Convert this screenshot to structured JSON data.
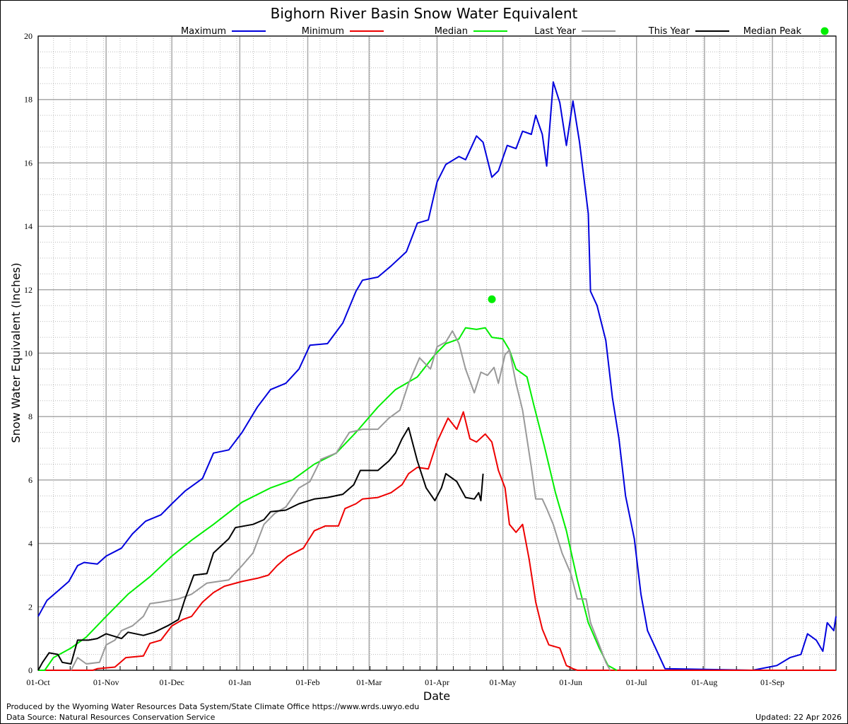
{
  "title": "Bighorn River Basin Snow Water Equivalent",
  "footer": {
    "produced_by": "Produced by the Wyoming Water Resources Data System/State Climate Office https://www.wrds.uwyo.edu",
    "data_source": "Data Source: Natural Resources Conservation Service",
    "updated": "Updated: 22 Apr 2026"
  },
  "chart_data": {
    "type": "line",
    "title": "Bighorn River Basin Snow Water Equivalent",
    "xlabel": "Date",
    "ylabel": "Snow Water Equivalent (Inches)",
    "ylim": [
      0,
      20
    ],
    "yticks": [
      0,
      2,
      4,
      6,
      8,
      10,
      12,
      14,
      16,
      18,
      20
    ],
    "xticks": [
      "01-Oct",
      "01-Nov",
      "01-Dec",
      "01-Jan",
      "01-Feb",
      "01-Mar",
      "01-Apr",
      "01-May",
      "01-Jun",
      "01-Jul",
      "01-Aug",
      "01-Sep"
    ],
    "xlim": [
      "01-Oct",
      "30-Sep"
    ],
    "grid": true,
    "legend_position": "top",
    "series": [
      {
        "name": "Maximum",
        "color": "#0000dd",
        "points": [
          [
            "01-Oct",
            1.7
          ],
          [
            "05-Oct",
            2.2
          ],
          [
            "10-Oct",
            2.5
          ],
          [
            "15-Oct",
            2.8
          ],
          [
            "19-Oct",
            3.3
          ],
          [
            "22-Oct",
            3.4
          ],
          [
            "28-Oct",
            3.35
          ],
          [
            "01-Nov",
            3.6
          ],
          [
            "08-Nov",
            3.85
          ],
          [
            "13-Nov",
            4.3
          ],
          [
            "19-Nov",
            4.7
          ],
          [
            "26-Nov",
            4.9
          ],
          [
            "01-Dec",
            5.25
          ],
          [
            "07-Dec",
            5.65
          ],
          [
            "15-Dec",
            6.05
          ],
          [
            "20-Dec",
            6.85
          ],
          [
            "27-Dec",
            6.95
          ],
          [
            "02-Jan",
            7.5
          ],
          [
            "09-Jan",
            8.3
          ],
          [
            "15-Jan",
            8.85
          ],
          [
            "22-Jan",
            9.05
          ],
          [
            "28-Jan",
            9.5
          ],
          [
            "02-Feb",
            10.25
          ],
          [
            "10-Feb",
            10.3
          ],
          [
            "17-Feb",
            10.95
          ],
          [
            "23-Feb",
            11.95
          ],
          [
            "26-Feb",
            12.3
          ],
          [
            "05-Mar",
            12.4
          ],
          [
            "11-Mar",
            12.75
          ],
          [
            "18-Mar",
            13.2
          ],
          [
            "23-Mar",
            14.1
          ],
          [
            "28-Mar",
            14.2
          ],
          [
            "01-Apr",
            15.4
          ],
          [
            "05-Apr",
            15.95
          ],
          [
            "11-Apr",
            16.2
          ],
          [
            "14-Apr",
            16.1
          ],
          [
            "19-Apr",
            16.85
          ],
          [
            "22-Apr",
            16.65
          ],
          [
            "26-Apr",
            15.55
          ],
          [
            "29-Apr",
            15.75
          ],
          [
            "03-May",
            16.55
          ],
          [
            "07-May",
            16.45
          ],
          [
            "10-May",
            17.0
          ],
          [
            "14-May",
            16.9
          ],
          [
            "16-May",
            17.5
          ],
          [
            "19-May",
            16.9
          ],
          [
            "21-May",
            15.9
          ],
          [
            "24-May",
            18.55
          ],
          [
            "27-May",
            17.9
          ],
          [
            "30-May",
            16.55
          ],
          [
            "02-Jun",
            17.95
          ],
          [
            "05-Jun",
            16.65
          ],
          [
            "09-Jun",
            14.4
          ],
          [
            "10-Jun",
            11.95
          ],
          [
            "13-Jun",
            11.5
          ],
          [
            "17-Jun",
            10.4
          ],
          [
            "20-Jun",
            8.6
          ],
          [
            "23-Jun",
            7.3
          ],
          [
            "26-Jun",
            5.5
          ],
          [
            "30-Jun",
            4.15
          ],
          [
            "03-Jul",
            2.4
          ],
          [
            "06-Jul",
            1.25
          ],
          [
            "11-Jul",
            0.5
          ],
          [
            "14-Jul",
            0.05
          ],
          [
            "23-Aug",
            0
          ],
          [
            "03-Sep",
            0.15
          ],
          [
            "09-Sep",
            0.4
          ],
          [
            "14-Sep",
            0.5
          ],
          [
            "17-Sep",
            1.15
          ],
          [
            "21-Sep",
            0.95
          ],
          [
            "24-Sep",
            0.6
          ],
          [
            "26-Sep",
            1.5
          ],
          [
            "29-Sep",
            1.25
          ],
          [
            "30-Sep",
            1.7
          ]
        ]
      },
      {
        "name": "Minimum",
        "color": "#ee0000",
        "points": [
          [
            "01-Oct",
            0
          ],
          [
            "26-Oct",
            0
          ],
          [
            "28-Oct",
            0.05
          ],
          [
            "05-Nov",
            0.1
          ],
          [
            "10-Nov",
            0.4
          ],
          [
            "18-Nov",
            0.45
          ],
          [
            "21-Nov",
            0.85
          ],
          [
            "26-Nov",
            0.95
          ],
          [
            "01-Dec",
            1.4
          ],
          [
            "06-Dec",
            1.6
          ],
          [
            "10-Dec",
            1.7
          ],
          [
            "15-Dec",
            2.15
          ],
          [
            "20-Dec",
            2.45
          ],
          [
            "25-Dec",
            2.65
          ],
          [
            "02-Jan",
            2.8
          ],
          [
            "09-Jan",
            2.9
          ],
          [
            "14-Jan",
            3.0
          ],
          [
            "18-Jan",
            3.3
          ],
          [
            "23-Jan",
            3.6
          ],
          [
            "30-Jan",
            3.85
          ],
          [
            "04-Feb",
            4.4
          ],
          [
            "09-Feb",
            4.55
          ],
          [
            "15-Feb",
            4.55
          ],
          [
            "18-Feb",
            5.1
          ],
          [
            "23-Feb",
            5.25
          ],
          [
            "26-Feb",
            5.4
          ],
          [
            "05-Mar",
            5.45
          ],
          [
            "11-Mar",
            5.6
          ],
          [
            "16-Mar",
            5.85
          ],
          [
            "19-Mar",
            6.2
          ],
          [
            "23-Mar",
            6.4
          ],
          [
            "28-Mar",
            6.35
          ],
          [
            "01-Apr",
            7.2
          ],
          [
            "06-Apr",
            7.95
          ],
          [
            "10-Apr",
            7.6
          ],
          [
            "13-Apr",
            8.15
          ],
          [
            "16-Apr",
            7.3
          ],
          [
            "19-Apr",
            7.2
          ],
          [
            "23-Apr",
            7.45
          ],
          [
            "26-Apr",
            7.2
          ],
          [
            "29-Apr",
            6.3
          ],
          [
            "02-May",
            5.75
          ],
          [
            "04-May",
            4.6
          ],
          [
            "07-May",
            4.35
          ],
          [
            "10-May",
            4.6
          ],
          [
            "13-May",
            3.5
          ],
          [
            "16-May",
            2.15
          ],
          [
            "19-May",
            1.3
          ],
          [
            "22-May",
            0.8
          ],
          [
            "27-May",
            0.7
          ],
          [
            "30-May",
            0.15
          ],
          [
            "02-Jun",
            0.05
          ],
          [
            "04-Jun",
            0
          ],
          [
            "30-Sep",
            0
          ]
        ]
      },
      {
        "name": "Median",
        "color": "#00ee00",
        "points": [
          [
            "01-Oct",
            0
          ],
          [
            "04-Oct",
            0
          ],
          [
            "08-Oct",
            0.4
          ],
          [
            "16-Oct",
            0.7
          ],
          [
            "23-Oct",
            1.05
          ],
          [
            "01-Nov",
            1.7
          ],
          [
            "11-Nov",
            2.4
          ],
          [
            "21-Nov",
            2.95
          ],
          [
            "01-Dec",
            3.6
          ],
          [
            "10-Dec",
            4.1
          ],
          [
            "20-Dec",
            4.6
          ],
          [
            "02-Jan",
            5.3
          ],
          [
            "15-Jan",
            5.75
          ],
          [
            "25-Jan",
            6.0
          ],
          [
            "04-Feb",
            6.5
          ],
          [
            "14-Feb",
            6.85
          ],
          [
            "23-Feb",
            7.5
          ],
          [
            "05-Mar",
            8.3
          ],
          [
            "13-Mar",
            8.85
          ],
          [
            "23-Mar",
            9.25
          ],
          [
            "31-Mar",
            9.95
          ],
          [
            "05-Apr",
            10.3
          ],
          [
            "11-Apr",
            10.45
          ],
          [
            "14-Apr",
            10.8
          ],
          [
            "19-Apr",
            10.75
          ],
          [
            "23-Apr",
            10.8
          ],
          [
            "26-Apr",
            10.5
          ],
          [
            "01-May",
            10.45
          ],
          [
            "04-May",
            10.1
          ],
          [
            "07-May",
            9.5
          ],
          [
            "12-May",
            9.25
          ],
          [
            "15-May",
            8.4
          ],
          [
            "20-May",
            7.05
          ],
          [
            "25-May",
            5.6
          ],
          [
            "30-May",
            4.4
          ],
          [
            "04-Jun",
            2.85
          ],
          [
            "09-Jun",
            1.5
          ],
          [
            "14-Jun",
            0.7
          ],
          [
            "18-Jun",
            0.15
          ],
          [
            "22-Jun",
            0
          ]
        ]
      },
      {
        "name": "Last Year",
        "color": "#999999",
        "points": [
          [
            "16-Oct",
            0
          ],
          [
            "19-Oct",
            0.4
          ],
          [
            "23-Oct",
            0.2
          ],
          [
            "29-Oct",
            0.25
          ],
          [
            "01-Nov",
            0.8
          ],
          [
            "05-Nov",
            0.95
          ],
          [
            "08-Nov",
            1.25
          ],
          [
            "13-Nov",
            1.4
          ],
          [
            "18-Nov",
            1.7
          ],
          [
            "21-Nov",
            2.1
          ],
          [
            "26-Nov",
            2.15
          ],
          [
            "04-Dec",
            2.25
          ],
          [
            "10-Dec",
            2.4
          ],
          [
            "17-Dec",
            2.75
          ],
          [
            "27-Dec",
            2.85
          ],
          [
            "02-Jan",
            3.3
          ],
          [
            "07-Jan",
            3.7
          ],
          [
            "12-Jan",
            4.6
          ],
          [
            "17-Jan",
            4.95
          ],
          [
            "22-Jan",
            5.15
          ],
          [
            "28-Jan",
            5.75
          ],
          [
            "02-Feb",
            5.95
          ],
          [
            "07-Feb",
            6.65
          ],
          [
            "14-Feb",
            6.85
          ],
          [
            "20-Feb",
            7.5
          ],
          [
            "26-Feb",
            7.6
          ],
          [
            "05-Mar",
            7.6
          ],
          [
            "10-Mar",
            7.95
          ],
          [
            "15-Mar",
            8.2
          ],
          [
            "19-Mar",
            9.05
          ],
          [
            "24-Mar",
            9.85
          ],
          [
            "29-Mar",
            9.5
          ],
          [
            "01-Apr",
            10.2
          ],
          [
            "05-Apr",
            10.35
          ],
          [
            "08-Apr",
            10.7
          ],
          [
            "11-Apr",
            10.3
          ],
          [
            "14-Apr",
            9.5
          ],
          [
            "18-Apr",
            8.75
          ],
          [
            "21-Apr",
            9.4
          ],
          [
            "24-Apr",
            9.3
          ],
          [
            "27-Apr",
            9.55
          ],
          [
            "29-Apr",
            9.05
          ],
          [
            "02-May",
            9.95
          ],
          [
            "04-May",
            10.1
          ],
          [
            "07-May",
            9.05
          ],
          [
            "10-May",
            8.2
          ],
          [
            "14-May",
            6.4
          ],
          [
            "16-May",
            5.4
          ],
          [
            "19-May",
            5.4
          ],
          [
            "21-May",
            5.1
          ],
          [
            "24-May",
            4.6
          ],
          [
            "28-May",
            3.7
          ],
          [
            "01-Jun",
            3.05
          ],
          [
            "04-Jun",
            2.25
          ],
          [
            "08-Jun",
            2.25
          ],
          [
            "10-Jun",
            1.5
          ],
          [
            "14-Jun",
            0.8
          ],
          [
            "17-Jun",
            0.25
          ],
          [
            "19-Jun",
            0
          ]
        ]
      },
      {
        "name": "This Year",
        "color": "#000000",
        "points": [
          [
            "01-Oct",
            0
          ],
          [
            "03-Oct",
            0.25
          ],
          [
            "06-Oct",
            0.55
          ],
          [
            "10-Oct",
            0.5
          ],
          [
            "12-Oct",
            0.25
          ],
          [
            "16-Oct",
            0.2
          ],
          [
            "19-Oct",
            0.95
          ],
          [
            "24-Oct",
            0.95
          ],
          [
            "28-Oct",
            1.0
          ],
          [
            "01-Nov",
            1.15
          ],
          [
            "08-Nov",
            1.0
          ],
          [
            "11-Nov",
            1.2
          ],
          [
            "18-Nov",
            1.1
          ],
          [
            "23-Nov",
            1.2
          ],
          [
            "29-Nov",
            1.4
          ],
          [
            "04-Dec",
            1.6
          ],
          [
            "07-Dec",
            2.25
          ],
          [
            "11-Dec",
            3.0
          ],
          [
            "17-Dec",
            3.05
          ],
          [
            "20-Dec",
            3.7
          ],
          [
            "27-Dec",
            4.15
          ],
          [
            "30-Dec",
            4.5
          ],
          [
            "07-Jan",
            4.6
          ],
          [
            "12-Jan",
            4.75
          ],
          [
            "15-Jan",
            5.0
          ],
          [
            "22-Jan",
            5.05
          ],
          [
            "28-Jan",
            5.25
          ],
          [
            "04-Feb",
            5.4
          ],
          [
            "10-Feb",
            5.45
          ],
          [
            "17-Feb",
            5.55
          ],
          [
            "22-Feb",
            5.85
          ],
          [
            "25-Feb",
            6.3
          ],
          [
            "05-Mar",
            6.3
          ],
          [
            "10-Mar",
            6.6
          ],
          [
            "13-Mar",
            6.85
          ],
          [
            "16-Mar",
            7.3
          ],
          [
            "19-Mar",
            7.65
          ],
          [
            "23-Mar",
            6.6
          ],
          [
            "27-Mar",
            5.75
          ],
          [
            "31-Mar",
            5.35
          ],
          [
            "03-Apr",
            5.75
          ],
          [
            "05-Apr",
            6.2
          ],
          [
            "10-Apr",
            5.95
          ],
          [
            "14-Apr",
            5.45
          ],
          [
            "18-Apr",
            5.4
          ],
          [
            "20-Apr",
            5.6
          ],
          [
            "21-Apr",
            5.35
          ],
          [
            "22-Apr",
            6.2
          ]
        ]
      }
    ],
    "median_peak": {
      "name": "Median Peak",
      "color": "#00ee00",
      "date": "26-Apr",
      "value": 11.7
    }
  }
}
